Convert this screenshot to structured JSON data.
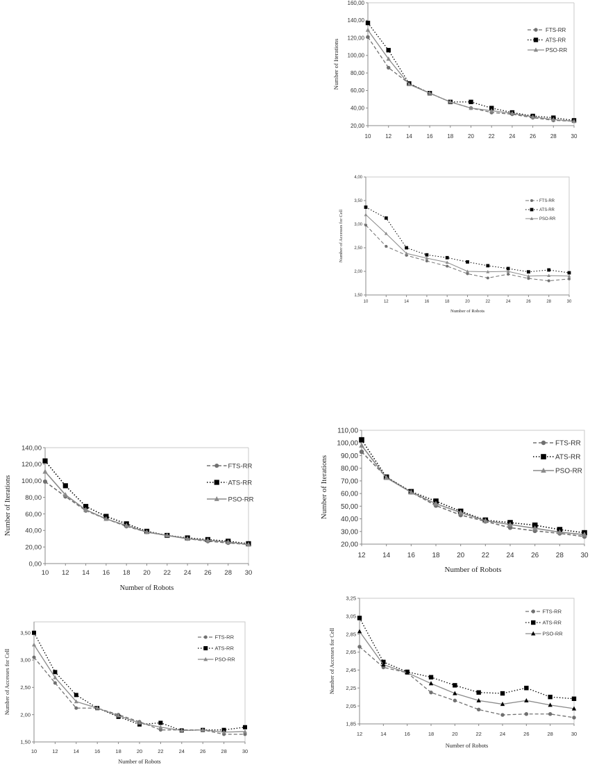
{
  "colors": {
    "fts": "#707070",
    "ats": "#000000",
    "pso": "#8a8a8a",
    "grid_border": "#c8c8c8"
  },
  "chart_data": [
    {
      "type": "line",
      "title": "",
      "xlabel": "",
      "ylabel": "Number of Iterations",
      "x": [
        10,
        12,
        14,
        16,
        18,
        20,
        22,
        24,
        26,
        28,
        30
      ],
      "xtick_labels": [
        "10",
        "12",
        "14",
        "16",
        "18",
        "20",
        "22",
        "24",
        "26",
        "28",
        "30"
      ],
      "ylim": [
        20,
        160
      ],
      "yticks": [
        20,
        40,
        60,
        80,
        100,
        120,
        140,
        160
      ],
      "ytick_labels": [
        "20,00",
        "40,00",
        "60,00",
        "80,00",
        "100,00",
        "120,00",
        "140,00",
        "160,00"
      ],
      "legend": "right",
      "series": [
        {
          "name": "FTS-RR",
          "values": [
            121,
            86,
            68,
            57,
            47,
            40,
            35,
            33,
            29,
            26,
            25
          ]
        },
        {
          "name": "ATS-RR",
          "values": [
            137,
            106,
            68,
            57,
            47,
            47,
            40,
            35,
            31,
            29,
            26
          ]
        },
        {
          "name": "PSO-RR",
          "values": [
            129,
            96,
            67,
            57,
            47,
            40,
            37,
            34,
            30,
            27,
            25
          ]
        }
      ]
    },
    {
      "type": "line",
      "title": "",
      "xlabel": "Number of Robots",
      "ylabel": "Number of Accesses for Cell",
      "x": [
        10,
        12,
        14,
        16,
        18,
        20,
        22,
        24,
        26,
        28,
        30
      ],
      "xtick_labels": [
        "10",
        "12",
        "14",
        "16",
        "18",
        "20",
        "22",
        "24",
        "26",
        "28",
        "30"
      ],
      "ylim": [
        1.5,
        4.0
      ],
      "yticks": [
        1.5,
        2.0,
        2.5,
        3.0,
        3.5,
        4.0
      ],
      "ytick_labels": [
        "1,50",
        "2,00",
        "2,50",
        "3,00",
        "3,50",
        "4,00"
      ],
      "legend": "right",
      "series": [
        {
          "name": "FTS-RR",
          "values": [
            2.98,
            2.53,
            2.34,
            2.22,
            2.11,
            1.95,
            1.86,
            1.94,
            1.85,
            1.8,
            1.84
          ]
        },
        {
          "name": "ATS-RR",
          "values": [
            3.36,
            3.13,
            2.5,
            2.35,
            2.29,
            2.2,
            2.12,
            2.06,
            1.99,
            2.03,
            1.97
          ]
        },
        {
          "name": "PSO-RR",
          "values": [
            3.2,
            2.8,
            2.38,
            2.28,
            2.19,
            2.0,
            1.99,
            2.0,
            1.9,
            1.91,
            1.9
          ]
        }
      ]
    },
    {
      "type": "line",
      "title": "",
      "xlabel": "Number of Robots",
      "ylabel": "Number of Iterations",
      "x": [
        10,
        12,
        14,
        16,
        18,
        20,
        22,
        24,
        26,
        28,
        30
      ],
      "xtick_labels": [
        "10",
        "12",
        "14",
        "16",
        "18",
        "20",
        "22",
        "24",
        "26",
        "28",
        "30"
      ],
      "ylim": [
        0,
        140
      ],
      "yticks": [
        0,
        20,
        40,
        60,
        80,
        100,
        120,
        140
      ],
      "ytick_labels": [
        "0,00",
        "20,00",
        "40,00",
        "60,00",
        "80,00",
        "100,00",
        "120,00",
        "140,00"
      ],
      "legend": "right",
      "series": [
        {
          "name": "FTS-RR",
          "values": [
            99,
            81,
            64,
            54,
            45,
            38,
            34,
            30,
            27,
            25,
            23
          ]
        },
        {
          "name": "ATS-RR",
          "values": [
            124,
            94,
            69,
            57,
            48,
            39,
            34,
            31,
            29,
            27,
            24
          ]
        },
        {
          "name": "PSO-RR",
          "values": [
            111,
            83,
            65,
            54,
            46,
            38,
            34,
            30,
            28,
            26,
            23
          ]
        }
      ]
    },
    {
      "type": "line",
      "title": "",
      "xlabel": "Number of Robots",
      "ylabel": "Number of Iterations",
      "x": [
        12,
        14,
        16,
        18,
        20,
        22,
        24,
        26,
        28,
        30
      ],
      "xtick_labels": [
        "12",
        "14",
        "16",
        "18",
        "20",
        "22",
        "24",
        "26",
        "28",
        "30"
      ],
      "ylim": [
        20,
        110
      ],
      "yticks": [
        20,
        30,
        40,
        50,
        60,
        70,
        80,
        90,
        100,
        110
      ],
      "ytick_labels": [
        "20,00",
        "30,00",
        "40,00",
        "50,00",
        "60,00",
        "70,00",
        "80,00",
        "90,00",
        "100,00",
        "110,00"
      ],
      "legend": "right",
      "series": [
        {
          "name": "FTS-RR",
          "values": [
            93,
            73,
            61,
            50.5,
            43,
            38,
            33,
            30.5,
            28.5,
            26
          ]
        },
        {
          "name": "ATS-RR",
          "values": [
            102.5,
            73,
            61.5,
            54,
            46,
            39,
            37,
            35,
            31.5,
            29
          ]
        },
        {
          "name": "PSO-RR",
          "values": [
            98,
            72.5,
            61,
            52,
            45,
            38.5,
            35.5,
            32.5,
            29.5,
            27.5
          ]
        }
      ]
    },
    {
      "type": "line",
      "title": "",
      "xlabel": "Number of Robots",
      "ylabel": "Number of Accesses for Cell",
      "x": [
        10,
        12,
        14,
        16,
        18,
        20,
        22,
        24,
        26,
        28,
        30
      ],
      "xtick_labels": [
        "10",
        "12",
        "14",
        "16",
        "18",
        "20",
        "22",
        "24",
        "26",
        "28",
        "30"
      ],
      "ylim": [
        1.5,
        3.7
      ],
      "yticks": [
        1.5,
        2.0,
        2.5,
        3.0,
        3.5
      ],
      "ytick_labels": [
        "1,50",
        "2,00",
        "2,50",
        "3,00",
        "3,50"
      ],
      "legend": "right",
      "series": [
        {
          "name": "FTS-RR",
          "values": [
            3.05,
            2.58,
            2.12,
            2.12,
            2.0,
            1.87,
            1.72,
            1.72,
            1.72,
            1.64,
            1.64
          ]
        },
        {
          "name": "ATS-RR",
          "values": [
            3.5,
            2.78,
            2.36,
            2.12,
            1.96,
            1.82,
            1.85,
            1.71,
            1.72,
            1.72,
            1.77
          ]
        },
        {
          "name": "PSO-RR",
          "values": [
            3.28,
            2.68,
            2.24,
            2.12,
            1.98,
            1.85,
            1.77,
            1.71,
            1.72,
            1.68,
            1.69
          ]
        }
      ]
    },
    {
      "type": "line",
      "title": "",
      "xlabel": "Number of Robots",
      "ylabel": "Number  of Accesses for Cell",
      "x": [
        12,
        14,
        16,
        18,
        20,
        22,
        24,
        26,
        28,
        30
      ],
      "xtick_labels": [
        "12",
        "14",
        "16",
        "18",
        "20",
        "22",
        "24",
        "26",
        "28",
        "30"
      ],
      "ylim": [
        1.85,
        3.25
      ],
      "yticks": [
        1.85,
        2.05,
        2.25,
        2.45,
        2.65,
        2.85,
        3.05,
        3.25
      ],
      "ytick_labels": [
        "1,85",
        "2,05",
        "2,25",
        "2,45",
        "2,65",
        "2,85",
        "3,05",
        "3,25"
      ],
      "legend": "right",
      "series": [
        {
          "name": "FTS-RR",
          "values": [
            2.71,
            2.48,
            2.42,
            2.2,
            2.11,
            2.01,
            1.95,
            1.96,
            1.96,
            1.92
          ]
        },
        {
          "name": "ATS-RR",
          "values": [
            3.03,
            2.54,
            2.43,
            2.37,
            2.28,
            2.2,
            2.19,
            2.25,
            2.15,
            2.13
          ]
        },
        {
          "name": "PSO-RR",
          "values": [
            2.88,
            2.51,
            2.42,
            2.3,
            2.19,
            2.11,
            2.07,
            2.11,
            2.06,
            2.02
          ]
        }
      ]
    }
  ]
}
